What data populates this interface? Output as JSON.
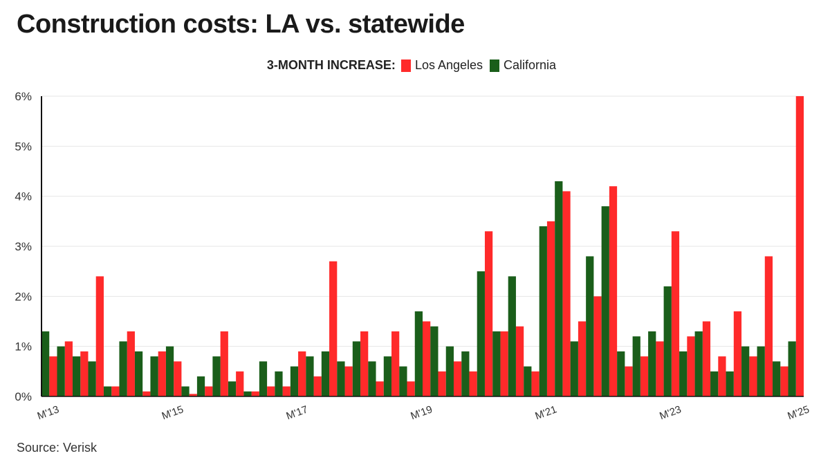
{
  "chart_data": {
    "type": "bar",
    "title": "Construction costs: LA vs. statewide",
    "legend_title": "3-MONTH INCREASE:",
    "legend_position": "top-center",
    "source": "Source: Verisk",
    "ylim": [
      0,
      6
    ],
    "y_ticks": [
      "0%",
      "1%",
      "2%",
      "3%",
      "4%",
      "5%",
      "6%"
    ],
    "grid": true,
    "x_tick_labels": [
      {
        "label": "M'13",
        "index": 0
      },
      {
        "label": "M'15",
        "index": 8
      },
      {
        "label": "M'17",
        "index": 16
      },
      {
        "label": "M'19",
        "index": 24
      },
      {
        "label": "M'21",
        "index": 32
      },
      {
        "label": "M'23",
        "index": 40
      },
      {
        "label": "M'25",
        "index": 48
      }
    ],
    "series": [
      {
        "name": "Los Angeles",
        "color": "#ff2a2a",
        "values": [
          0.8,
          1.1,
          0.9,
          2.4,
          0.2,
          1.3,
          0.1,
          0.9,
          0.7,
          0.05,
          0.2,
          1.3,
          0.5,
          0.1,
          0.2,
          0.2,
          0.9,
          0.4,
          2.7,
          0.6,
          1.3,
          0.3,
          1.3,
          0.3,
          1.5,
          0.5,
          0.7,
          0.5,
          3.3,
          1.3,
          1.4,
          0.5,
          3.5,
          4.1,
          1.5,
          2.0,
          4.2,
          0.6,
          0.8,
          1.1,
          3.3,
          1.2,
          1.5,
          0.8,
          1.7,
          0.8,
          2.8,
          0.6,
          6.0
        ]
      },
      {
        "name": "California",
        "color": "#1a5e1a",
        "values": [
          1.3,
          1.0,
          0.8,
          0.7,
          0.2,
          1.1,
          0.9,
          0.8,
          1.0,
          0.2,
          0.4,
          0.8,
          0.3,
          0.1,
          0.7,
          0.5,
          0.6,
          0.8,
          0.9,
          0.7,
          1.1,
          0.7,
          0.8,
          0.6,
          1.7,
          1.4,
          1.0,
          0.9,
          2.5,
          1.3,
          2.4,
          0.6,
          3.4,
          4.3,
          1.1,
          2.8,
          3.8,
          0.9,
          1.2,
          1.3,
          2.2,
          0.9,
          1.3,
          0.5,
          0.5,
          1.0,
          1.0,
          0.7,
          1.1
        ]
      }
    ]
  }
}
